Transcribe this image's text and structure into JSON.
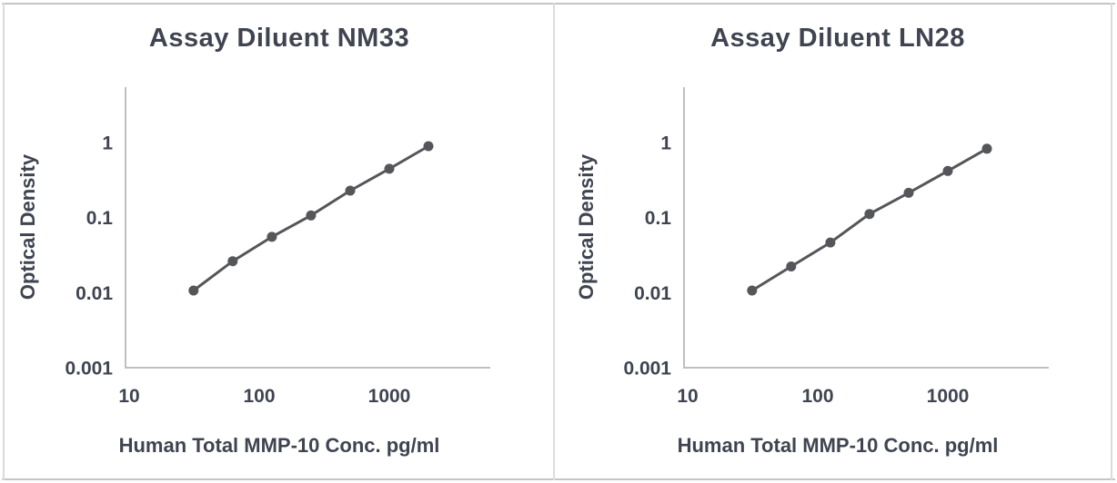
{
  "page": {
    "background": "#ffffff",
    "frame_border_color": "#c4c4c4",
    "frame_side_color": "#dadada",
    "divider_color": "#dcdcdc",
    "text_color": "#3f4450",
    "axis_line_color": "#bfbfbf",
    "series_color": "#55565a"
  },
  "chart_data": [
    {
      "type": "line",
      "title": "Assay Diluent NM33",
      "xlabel": "Human Total MMP-10 Conc. pg/ml",
      "ylabel": "Optical Density",
      "x_scale": "log",
      "y_scale": "log",
      "x": [
        31.25,
        62.5,
        125,
        250,
        500,
        1000,
        2000
      ],
      "y": [
        0.011,
        0.027,
        0.057,
        0.11,
        0.235,
        0.46,
        0.92
      ],
      "x_tick_values": [
        10,
        100,
        1000
      ],
      "x_tick_labels": [
        "10",
        "100",
        "1000"
      ],
      "y_tick_values": [
        1,
        0.1,
        0.01,
        0.001
      ],
      "y_tick_labels": [
        "1",
        "0.1",
        "0.01",
        "0.001"
      ],
      "xlim": [
        10,
        5500
      ],
      "ylim": [
        0.001,
        6
      ],
      "grid": false,
      "legend": null,
      "marker": "circle"
    },
    {
      "type": "line",
      "title": "Assay Diluent LN28",
      "xlabel": "Human Total MMP-10 Conc. pg/ml",
      "ylabel": "Optical Density",
      "x_scale": "log",
      "y_scale": "log",
      "x": [
        31.25,
        62.5,
        125,
        250,
        500,
        1000,
        2000
      ],
      "y": [
        0.011,
        0.023,
        0.048,
        0.115,
        0.22,
        0.43,
        0.85
      ],
      "x_tick_values": [
        10,
        100,
        1000
      ],
      "x_tick_labels": [
        "10",
        "100",
        "1000"
      ],
      "y_tick_values": [
        1,
        0.1,
        0.01,
        0.001
      ],
      "y_tick_labels": [
        "1",
        "0.1",
        "0.01",
        "0.001"
      ],
      "xlim": [
        10,
        5500
      ],
      "ylim": [
        0.001,
        6
      ],
      "grid": false,
      "legend": null,
      "marker": "circle"
    }
  ]
}
